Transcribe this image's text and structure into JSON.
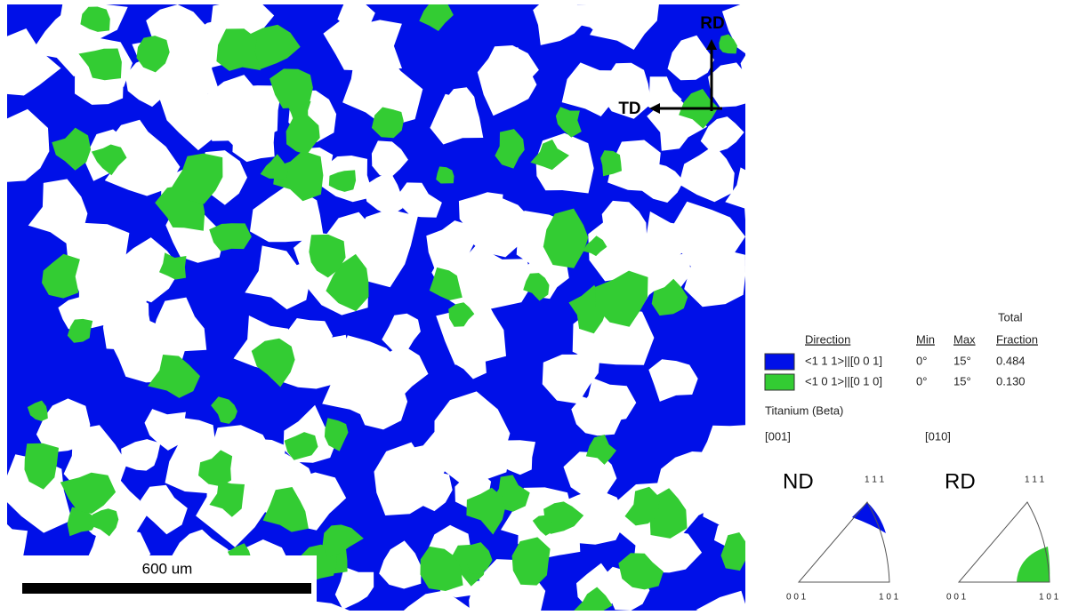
{
  "map": {
    "scale_bar": "600 um",
    "axis_vertical": "RD",
    "axis_horizontal": "TD"
  },
  "legend": {
    "headers": {
      "total": "Total",
      "direction": "Direction",
      "min": "Min",
      "max": "Max",
      "fraction": "Fraction"
    },
    "rows": [
      [
        "<1 1 1>||[0 0 1]",
        "0°",
        "15°",
        "0.484"
      ],
      [
        "<1 0 1>||[0 1 0]",
        "0°",
        "15°",
        "0.130"
      ]
    ],
    "phase": "Titanium (Beta)"
  },
  "pole_figures": [
    {
      "direction": "[001]",
      "label": "ND",
      "corners": [
        "0 0 1",
        "1 0 1",
        "1 1 1"
      ]
    },
    {
      "direction": "[010]",
      "label": "RD",
      "corners": [
        "0 0 1",
        "1 0 1",
        "1 1 1"
      ]
    }
  ]
}
